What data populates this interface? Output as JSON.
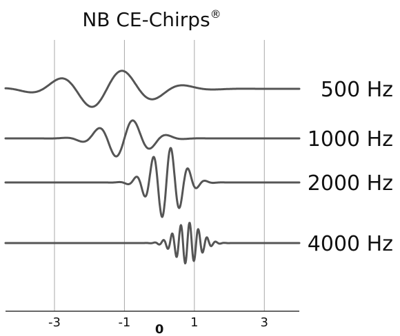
{
  "chart_data": {
    "type": "line",
    "title": "NB CE-Chirps",
    "title_mark": "®",
    "xlabel": "",
    "ylabel": "",
    "x_ticks": [
      {
        "value": -3,
        "label": "-3",
        "bold": false
      },
      {
        "value": -1,
        "label": "-1",
        "bold": false
      },
      {
        "value": 0,
        "label": "0",
        "bold": true
      },
      {
        "value": 1,
        "label": "1",
        "bold": false
      },
      {
        "value": 3,
        "label": "3",
        "bold": false
      }
    ],
    "gridlines_x": [
      -3,
      -1,
      1,
      3
    ],
    "xlim": [
      -4.4,
      4.0
    ],
    "grid": true,
    "legend": "right of each trace",
    "line_color": "#555555",
    "series": [
      {
        "name": "500 Hz",
        "center": -1.5,
        "amplitude": 1.0,
        "cycles_per_unit": 0.55,
        "spread": 1.2,
        "level": 0.0
      },
      {
        "name": "1000 Hz",
        "center": -1.0,
        "amplitude": 1.0,
        "cycles_per_unit": 1.0,
        "spread": 0.65,
        "level": 0.0
      },
      {
        "name": "2000 Hz",
        "center": 0.2,
        "amplitude": 1.0,
        "cycles_per_unit": 2.0,
        "spread": 0.45,
        "level": 0.0
      },
      {
        "name": "4000 Hz",
        "center": 0.8,
        "amplitude": 1.0,
        "cycles_per_unit": 4.0,
        "spread": 0.35,
        "level": 0.0
      }
    ]
  }
}
